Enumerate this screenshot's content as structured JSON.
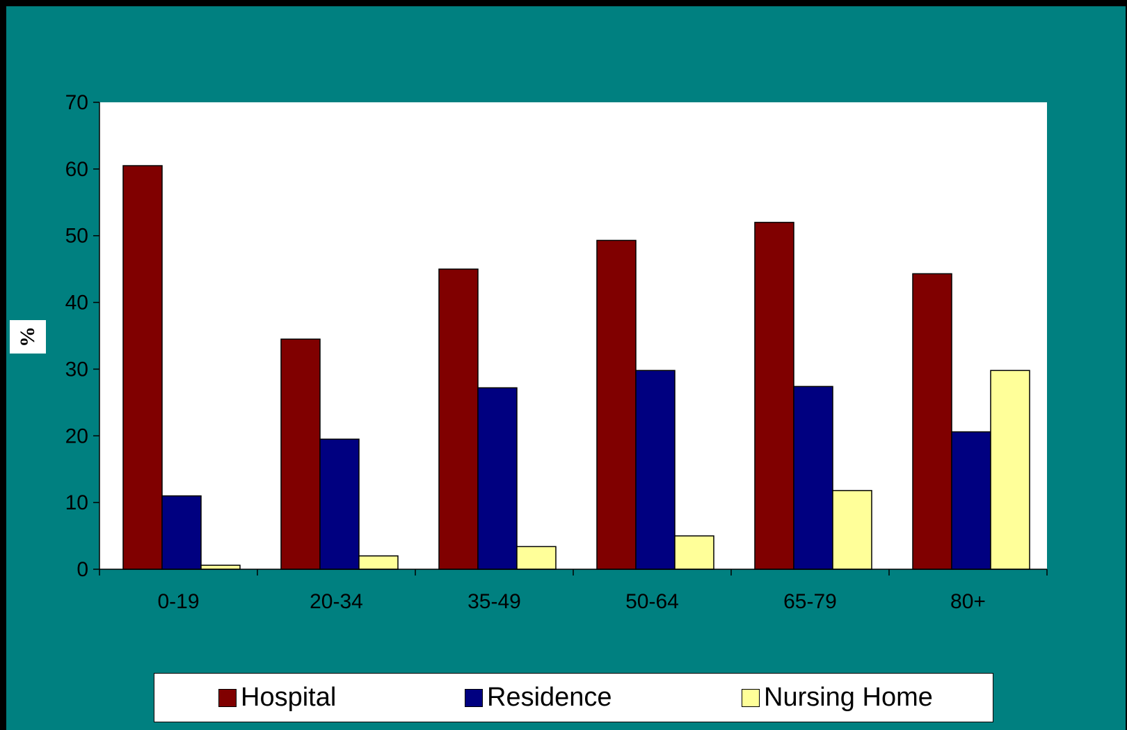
{
  "chart_data": {
    "type": "bar",
    "title": "",
    "xlabel": "",
    "ylabel": "%",
    "ylim": [
      0,
      70
    ],
    "yticks": [
      0,
      10,
      20,
      30,
      40,
      50,
      60,
      70
    ],
    "categories": [
      "0-19",
      "20-34",
      "35-49",
      "50-64",
      "65-79",
      "80+"
    ],
    "series": [
      {
        "name": "Hospital",
        "color": "#800000",
        "values": [
          60.5,
          34.5,
          45.0,
          49.3,
          52.0,
          44.3
        ]
      },
      {
        "name": "Residence",
        "color": "#000080",
        "values": [
          11.0,
          19.5,
          27.2,
          29.8,
          27.4,
          20.6
        ]
      },
      {
        "name": "Nursing Home",
        "color": "#FFFF99",
        "values": [
          0.6,
          2.0,
          3.4,
          5.0,
          11.8,
          29.8
        ]
      }
    ],
    "legend_position": "bottom",
    "grid": false,
    "plot_background": "#FFFFFF",
    "frame_background": "#008080"
  }
}
